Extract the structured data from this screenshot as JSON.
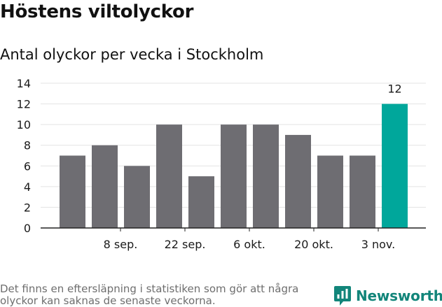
{
  "title": "Höstens viltolyckor",
  "subtitle": "Antal olyckor per vecka i Stockholm",
  "footnote": "Det finns en eftersläpning i statistiken som gör att några olyckor kan saknas de senaste veckorna.",
  "brand": {
    "name": "Newsworthy",
    "icon": "newsworthy-logo-icon"
  },
  "colors": {
    "bar": "#6e6d72",
    "highlight": "#00a79b",
    "grid": "#e3e3e3",
    "axis": "#222222",
    "brand": "#12857a"
  },
  "chart_data": {
    "type": "bar",
    "title": "Höstens viltolyckor",
    "subtitle": "Antal olyckor per vecka i Stockholm",
    "xlabel": "",
    "ylabel": "",
    "ylim": [
      0,
      14
    ],
    "yticks": [
      0,
      2,
      4,
      6,
      8,
      10,
      12,
      14
    ],
    "values": [
      7,
      8,
      6,
      10,
      5,
      10,
      10,
      9,
      7,
      7,
      12
    ],
    "x_tick_labels": [
      {
        "label": "8 sep.",
        "bar_index": 1
      },
      {
        "label": "22 sep.",
        "bar_index": 3
      },
      {
        "label": "6 okt.",
        "bar_index": 5
      },
      {
        "label": "20 okt.",
        "bar_index": 7
      },
      {
        "label": "3 nov.",
        "bar_index": 9
      }
    ],
    "highlight_index": 10,
    "data_labels": [
      {
        "bar_index": 10,
        "text": "12"
      }
    ],
    "grid": true
  }
}
